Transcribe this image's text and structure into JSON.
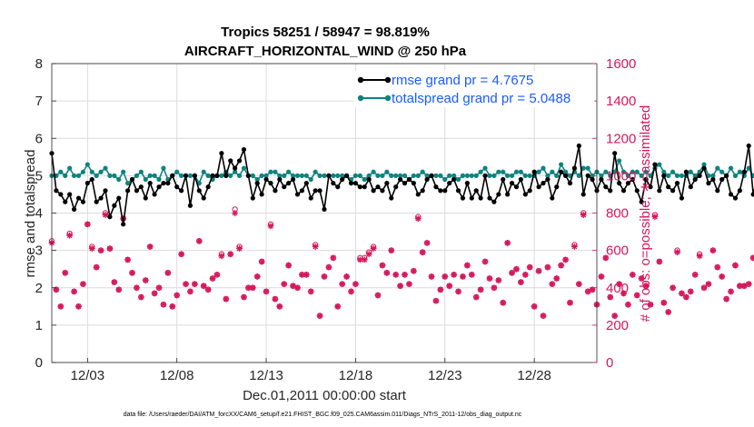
{
  "chart_data": {
    "type": "line",
    "title": "Tropics 58251 / 58947 = 98.819%",
    "subtitle": "AIRCRAFT_HORIZONTAL_WIND @ 250 hPa",
    "xlabel": "Dec.01,2011 00:00:00 start",
    "ylabel_left": "rmse and totalspread",
    "ylabel_right": "# of obs: o=possible; ∗=assimilated",
    "x_tick_labels": [
      "12/03",
      "12/08",
      "12/13",
      "12/18",
      "12/23",
      "12/28"
    ],
    "x_tick_values": [
      2,
      7,
      12,
      17,
      22,
      27
    ],
    "xlim": [
      0,
      30.5
    ],
    "ylim_left": [
      0,
      8
    ],
    "ylim_right": [
      0,
      1600
    ],
    "yticks_left": [
      0,
      1,
      2,
      3,
      4,
      5,
      6,
      7,
      8
    ],
    "yticks_right": [
      0,
      200,
      400,
      600,
      800,
      1000,
      1200,
      1400,
      1600
    ],
    "x_step_days": 0.25,
    "footer": "data file: /Users/raeder/DAI/ATM_forcXX/CAM6_setup/f.e21.FHIST_BGC.f09_025.CAM6assim.011/Diags_NTrS_2011-12/obs_diag_output.nc",
    "colors": {
      "rmse": "#000000",
      "totalspread": "#0f8380",
      "obs": "#d6175c",
      "legend_text": "#1a5bff"
    },
    "grid": true,
    "legend_position": "top-right",
    "series": [
      {
        "name": "rmse grand pr = 4.7675",
        "axis": "left",
        "values": [
          5.6,
          4.6,
          4.5,
          4.3,
          4.5,
          4.1,
          4.4,
          4.3,
          4.8,
          4.9,
          4.3,
          4.4,
          4.6,
          3.9,
          4.2,
          4.4,
          3.7,
          4.6,
          4.9,
          4.6,
          4.7,
          4.4,
          4.8,
          4.5,
          4.7,
          4.8,
          4.8,
          5.0,
          4.7,
          4.6,
          5.0,
          4.2,
          5.0,
          4.6,
          4.4,
          4.7,
          5.0,
          5.0,
          5.6,
          5.0,
          5.4,
          5.2,
          5.4,
          5.7,
          5.0,
          4.4,
          4.8,
          4.5,
          4.9,
          4.8,
          4.6,
          4.9,
          4.7,
          4.8,
          4.9,
          4.5,
          4.6,
          4.8,
          4.4,
          4.6,
          4.6,
          4.1,
          5.0,
          4.8,
          4.7,
          4.9,
          5.0,
          4.8,
          4.8,
          4.7,
          4.7,
          4.9,
          4.6,
          4.7,
          4.6,
          4.8,
          4.4,
          4.7,
          4.9,
          4.8,
          4.9,
          4.8,
          4.5,
          4.6,
          4.9,
          5.0,
          4.7,
          4.6,
          4.6,
          4.8,
          4.9,
          4.6,
          4.4,
          4.8,
          4.4,
          4.6,
          4.4,
          5.0,
          4.4,
          4.3,
          4.5,
          4.9,
          4.5,
          4.8,
          4.7,
          4.9,
          4.5,
          4.6,
          5.1,
          4.7,
          4.8,
          4.9,
          4.4,
          4.7,
          5.1,
          5.0,
          4.8,
          5.2,
          5.8,
          4.5,
          5.0,
          4.9,
          4.6,
          4.9,
          4.7,
          4.6,
          5.6,
          4.8,
          4.6,
          4.8,
          4.9,
          4.6,
          4.3,
          4.9,
          4.7,
          5.3,
          4.6,
          5.0,
          4.7,
          4.6,
          4.8,
          4.4,
          5.1,
          4.7,
          4.9,
          5.0,
          5.2,
          4.8,
          4.9,
          4.6,
          4.9,
          5.0,
          4.5,
          4.4,
          4.6,
          5.1,
          5.8,
          4.5,
          5.0,
          5.2,
          4.7,
          4.7,
          4.3,
          4.8,
          5.2,
          4.7,
          4.9,
          5.1,
          5.3,
          4.8,
          4.9,
          4.6,
          4.6,
          5.1,
          5.2,
          5.4,
          5.0,
          4.8,
          5.2,
          4.9,
          4.8,
          4.5,
          4.9,
          4.8,
          4.8,
          4.7,
          4.9,
          5.1,
          4.9,
          5.0,
          4.6,
          4.7,
          4.9,
          5.0,
          5.2,
          5.3,
          5.1,
          4.9,
          5.0,
          5.1,
          5.0,
          4.7,
          4.8,
          4.9,
          5.2,
          5.0,
          4.9,
          4.8,
          4.9,
          5.0,
          5.2,
          5.1,
          4.8,
          4.7,
          4.9,
          5.2,
          5.0,
          4.7,
          5.0,
          5.2,
          5.1,
          5.3,
          5.0,
          5.0,
          4.7,
          4.8,
          5.0,
          4.7,
          5.2,
          4.8,
          4.9,
          4.8,
          5.0,
          4.7,
          5.1,
          5.0,
          4.9,
          5.2,
          5.1,
          5.0,
          4.8,
          5.2,
          5.0,
          4.7,
          5.0,
          4.9,
          5.1,
          4.9,
          5.2,
          5.0,
          4.8,
          4.9,
          5.0,
          4.7
        ]
      },
      {
        "name": "totalspread grand pr = 5.0488",
        "axis": "left",
        "values": [
          5.0,
          5.0,
          5.1,
          5.0,
          5.2,
          5.0,
          5.0,
          5.1,
          5.3,
          5.1,
          5.0,
          5.1,
          5.2,
          5.0,
          5.0,
          4.9,
          5.1,
          4.8,
          4.9,
          5.0,
          5.1,
          4.9,
          5.0,
          5.0,
          4.9,
          5.2,
          4.9,
          5.0,
          5.1,
          5.0,
          5.0,
          5.0,
          5.0,
          4.8,
          5.1,
          5.0,
          4.9,
          5.0,
          5.0,
          5.1,
          5.0,
          5.1,
          5.0,
          5.2,
          5.0,
          5.0,
          4.9,
          5.0,
          5.0,
          5.1,
          5.1,
          5.0,
          5.0,
          5.1,
          5.0,
          5.0,
          5.0,
          5.0,
          4.9,
          5.1,
          5.0,
          5.0,
          5.0,
          5.0,
          5.0,
          5.0,
          5.0,
          4.9,
          5.0,
          5.0,
          4.9,
          5.0,
          5.1,
          5.0,
          5.0,
          5.1,
          5.0,
          5.0,
          5.0,
          5.0,
          4.9,
          5.0,
          5.0,
          5.1,
          5.0,
          5.0,
          5.0,
          5.0,
          4.9,
          5.0,
          5.0,
          4.9,
          5.0,
          5.0,
          5.0,
          5.0,
          5.1,
          5.2,
          5.0,
          5.0,
          5.1,
          5.1,
          5.0,
          5.0,
          5.1,
          5.1,
          5.0,
          5.0,
          5.0,
          5.1,
          5.2,
          5.0,
          5.1,
          5.0,
          5.3,
          5.1,
          5.0,
          5.1,
          5.0,
          5.2,
          5.2,
          5.0,
          5.1,
          5.0,
          5.1,
          5.0,
          5.1,
          5.4,
          5.1,
          5.0,
          5.1,
          5.1,
          5.0,
          5.1,
          5.0,
          5.2,
          5.3,
          5.1,
          5.0,
          5.1,
          5.0,
          5.0,
          5.0,
          5.1,
          5.0,
          5.1,
          5.3,
          5.0,
          5.0,
          5.2,
          5.1,
          5.0,
          5.2,
          5.0,
          5.1,
          5.0,
          5.2,
          5.0,
          5.1,
          5.3,
          5.1,
          5.0,
          5.1,
          5.2,
          5.0,
          5.1,
          5.1,
          5.1,
          5.2,
          5.0,
          5.3,
          5.1,
          5.0,
          5.1,
          5.0,
          5.1,
          5.0,
          5.1,
          5.0,
          5.2,
          5.1,
          5.0,
          5.1,
          5.0,
          5.1,
          5.1,
          5.2,
          5.0,
          5.1,
          5.3,
          5.1,
          5.0,
          5.1,
          5.0,
          5.1,
          5.2,
          5.0,
          5.1,
          5.2,
          5.1,
          5.3,
          5.1,
          5.0,
          5.1,
          5.2,
          5.3,
          5.2,
          5.1,
          5.2,
          5.0,
          5.1,
          5.2,
          5.0,
          5.1,
          5.2,
          5.0,
          5.1,
          5.2,
          5.3,
          5.1,
          5.1,
          5.0,
          5.1,
          5.2,
          5.3,
          5.1,
          5.0,
          5.2,
          5.1,
          5.0,
          5.2,
          5.1,
          5.0,
          5.1,
          5.2,
          5.1,
          5.3,
          5.1,
          5.1,
          5.2,
          5.0,
          5.1,
          5.3,
          5.1,
          5.0,
          5.2,
          5.3,
          5.1,
          5.0,
          5.0
        ]
      },
      {
        "name": "obs possible",
        "axis": "right",
        "marker": "o",
        "values": [
          650,
          390,
          300,
          480,
          690,
          380,
          300,
          420,
          740,
          620,
          510,
          600,
          800,
          610,
          430,
          390,
          770,
          550,
          480,
          400,
          350,
          440,
          620,
          370,
          400,
          310,
          480,
          300,
          360,
          580,
          420,
          380,
          420,
          650,
          410,
          390,
          450,
          470,
          580,
          340,
          580,
          820,
          620,
          350,
          400,
          400,
          460,
          540,
          380,
          740,
          340,
          300,
          420,
          520,
          410,
          400,
          470,
          470,
          380,
          630,
          250,
          460,
          510,
          560,
          300,
          420,
          460,
          380,
          420,
          560,
          560,
          590,
          620,
          360,
          520,
          480,
          600,
          470,
          410,
          470,
          420,
          490,
          780,
          590,
          640,
          460,
          330,
          390,
          460,
          410,
          470,
          380,
          460,
          520,
          470,
          350,
          390,
          540,
          450,
          400,
          440,
          320,
          640,
          480,
          500,
          430,
          470,
          510,
          300,
          490,
          250,
          510,
          420,
          450,
          520,
          550,
          320,
          630,
          420,
          800,
          380,
          390,
          310,
          460,
          560,
          350,
          250,
          420,
          370,
          310,
          470,
          360,
          450,
          410,
          310,
          790,
          540,
          320,
          270,
          400,
          600,
          370,
          350,
          380,
          470,
          580,
          400,
          420,
          600,
          510,
          460,
          340,
          380,
          520,
          410,
          410,
          420,
          560,
          250,
          300,
          490,
          460,
          410,
          580,
          460,
          480,
          550,
          400,
          600,
          600,
          430,
          280,
          410,
          330,
          220,
          310,
          390,
          250,
          460,
          410,
          480,
          390,
          360,
          410,
          360,
          340,
          610,
          590,
          370,
          400,
          420,
          410,
          420,
          380,
          440,
          600,
          420,
          360,
          380,
          300,
          410,
          470,
          610,
          440,
          400,
          550,
          450,
          330,
          470,
          600,
          370,
          500,
          600,
          430,
          390,
          350,
          430,
          600,
          400,
          350,
          300,
          430,
          470,
          400,
          450,
          550,
          350,
          380,
          500,
          350,
          300,
          370,
          330,
          400,
          460,
          420,
          350,
          480,
          470,
          600,
          370,
          350,
          420,
          380,
          340,
          400,
          440,
          380,
          430,
          460,
          600,
          490,
          350,
          0
        ]
      },
      {
        "name": "obs assimilated",
        "axis": "right",
        "marker": "*",
        "values": [
          640,
          390,
          300,
          480,
          680,
          380,
          300,
          420,
          740,
          610,
          510,
          600,
          790,
          610,
          430,
          390,
          770,
          550,
          480,
          400,
          350,
          440,
          620,
          370,
          400,
          310,
          480,
          300,
          360,
          580,
          420,
          380,
          420,
          650,
          410,
          390,
          450,
          470,
          570,
          340,
          580,
          800,
          610,
          350,
          400,
          400,
          460,
          540,
          380,
          730,
          340,
          300,
          420,
          520,
          410,
          400,
          470,
          470,
          380,
          620,
          250,
          460,
          510,
          560,
          300,
          420,
          460,
          380,
          420,
          550,
          550,
          580,
          610,
          360,
          520,
          480,
          600,
          470,
          410,
          470,
          420,
          490,
          770,
          590,
          640,
          460,
          330,
          390,
          460,
          410,
          470,
          380,
          460,
          520,
          470,
          350,
          390,
          540,
          450,
          400,
          440,
          320,
          640,
          480,
          500,
          430,
          470,
          510,
          300,
          490,
          250,
          510,
          420,
          450,
          520,
          550,
          320,
          620,
          420,
          790,
          380,
          390,
          310,
          460,
          560,
          350,
          250,
          420,
          370,
          310,
          470,
          360,
          450,
          410,
          310,
          780,
          540,
          320,
          270,
          400,
          590,
          370,
          350,
          380,
          470,
          570,
          400,
          420,
          600,
          510,
          460,
          340,
          380,
          520,
          410,
          410,
          420,
          560,
          250,
          300,
          490,
          460,
          410,
          570,
          460,
          480,
          550,
          400,
          600,
          600,
          430,
          280,
          410,
          330,
          220,
          310,
          390,
          250,
          460,
          410,
          480,
          390,
          360,
          410,
          360,
          340,
          600,
          580,
          370,
          400,
          420,
          410,
          420,
          380,
          440,
          600,
          420,
          360,
          380,
          300,
          410,
          470,
          600,
          440,
          400,
          550,
          450,
          330,
          470,
          600,
          370,
          500,
          600,
          430,
          390,
          350,
          430,
          600,
          400,
          350,
          300,
          430,
          470,
          400,
          450,
          550,
          350,
          380,
          500,
          350,
          300,
          370,
          330,
          400,
          460,
          420,
          350,
          480,
          470,
          600,
          370,
          350,
          420,
          380,
          340,
          400,
          440,
          380,
          430,
          460,
          600,
          490,
          350,
          0
        ]
      }
    ]
  }
}
